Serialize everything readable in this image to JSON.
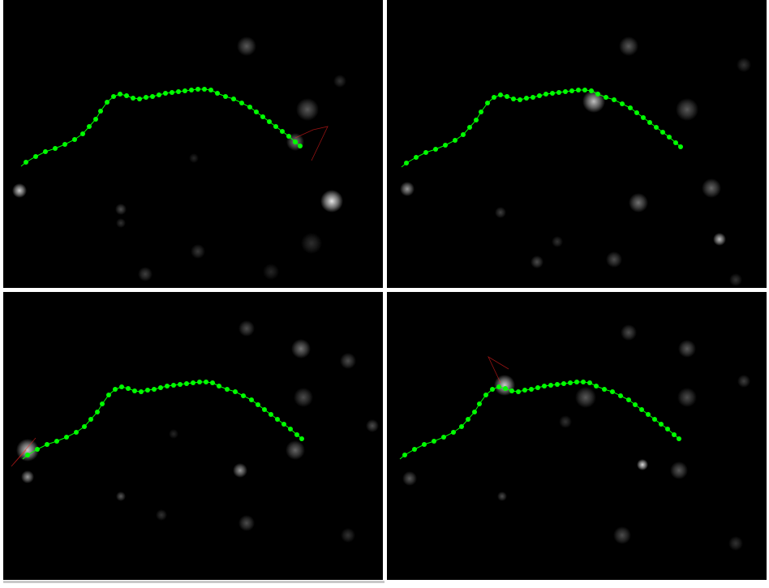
{
  "figure": {
    "panels": [
      {
        "name": "frame-top-left"
      },
      {
        "name": "frame-top-right"
      },
      {
        "name": "frame-bottom-left"
      },
      {
        "name": "frame-bottom-right"
      }
    ],
    "trace_color": "#00ff00",
    "tip_color": "#ff2020",
    "cell_color": "#ffffff"
  }
}
